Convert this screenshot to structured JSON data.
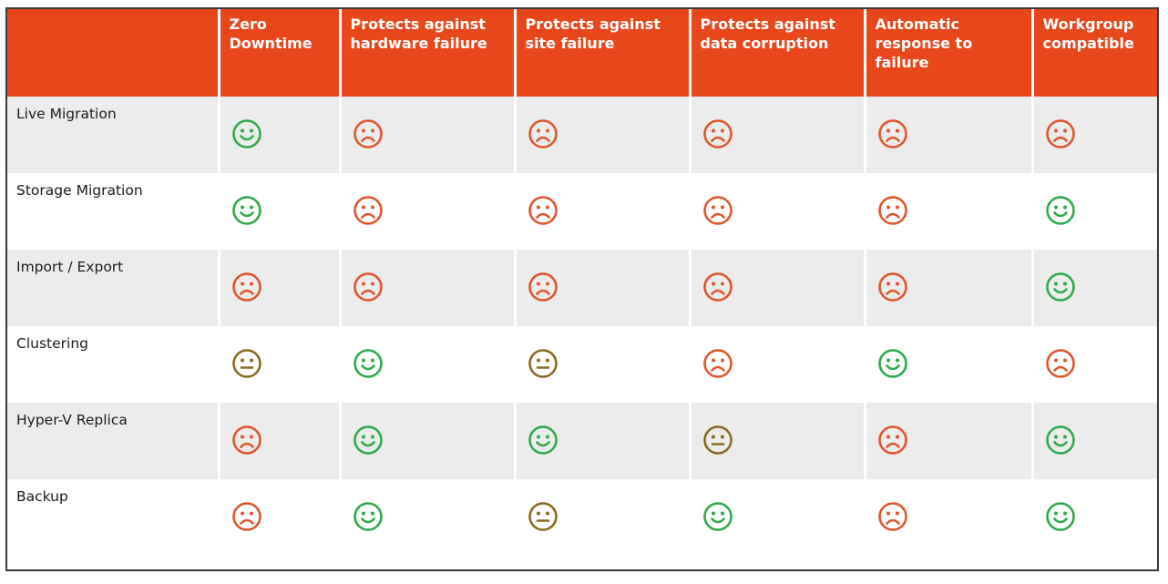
{
  "table": {
    "columns": [
      "",
      "Zero Downtime",
      "Protects against hardware failure",
      "Protects against site failure",
      "Protects against data corruption",
      "Automatic response to failure",
      "Workgroup compatible"
    ],
    "rows": [
      {
        "label": "Live Migration",
        "ratings": [
          "smile",
          "frown",
          "frown",
          "frown",
          "frown",
          "frown"
        ]
      },
      {
        "label": "Storage Migration",
        "ratings": [
          "smile",
          "frown",
          "frown",
          "frown",
          "frown",
          "smile"
        ]
      },
      {
        "label": "Import / Export",
        "ratings": [
          "frown",
          "frown",
          "frown",
          "frown",
          "frown",
          "smile"
        ]
      },
      {
        "label": "Clustering",
        "ratings": [
          "neutral",
          "smile",
          "neutral",
          "frown",
          "smile",
          "frown"
        ]
      },
      {
        "label": "Hyper-V Replica",
        "ratings": [
          "frown",
          "smile",
          "smile",
          "neutral",
          "frown",
          "smile"
        ]
      },
      {
        "label": "Backup",
        "ratings": [
          "frown",
          "smile",
          "neutral",
          "smile",
          "frown",
          "smile"
        ]
      }
    ]
  },
  "colors": {
    "header_bg": "#e8471c",
    "header_text": "#ffffff",
    "row_shade": "#ececec",
    "smile": "#2eaa4a",
    "frown": "#e0552d",
    "neutral": "#8a6a1f"
  },
  "icons": {
    "smile": "smiley-face-icon",
    "frown": "frowning-face-icon",
    "neutral": "neutral-face-icon"
  }
}
